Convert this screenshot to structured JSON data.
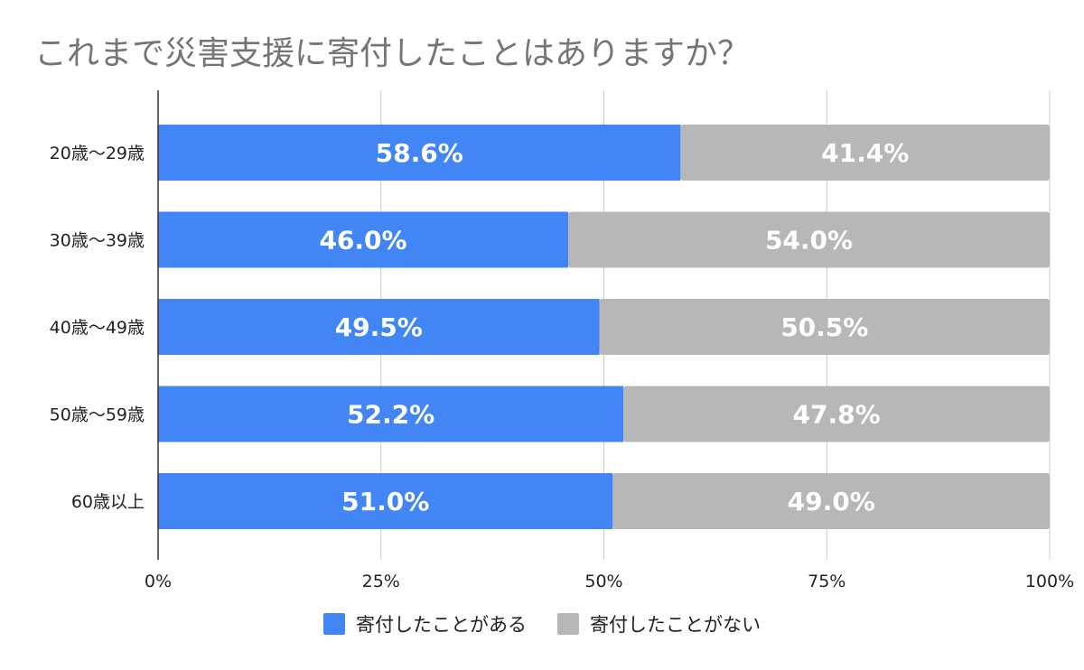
{
  "chart_data": {
    "type": "bar",
    "orientation": "horizontal",
    "stacked": true,
    "title": "これまで災害支援に寄付したことはありますか？",
    "categories": [
      "20歳～29歳",
      "30歳～39歳",
      "40歳～49歳",
      "50歳～59歳",
      "60歳以上"
    ],
    "series": [
      {
        "name": "寄付したことがある",
        "color": "#4285f4",
        "values": [
          58.6,
          46.0,
          49.5,
          52.2,
          51.0
        ],
        "labels": [
          "58.6%",
          "46.0%",
          "49.5%",
          "52.2%",
          "51.0%"
        ]
      },
      {
        "name": "寄付したことがない",
        "color": "#b7b7b7",
        "values": [
          41.4,
          54.0,
          50.5,
          47.8,
          49.0
        ],
        "labels": [
          "41.4%",
          "54.0%",
          "50.5%",
          "47.8%",
          "49.0%"
        ]
      }
    ],
    "xlim": [
      0,
      100
    ],
    "xticks": [
      0,
      25,
      50,
      75,
      100
    ],
    "xtick_labels": [
      "0%",
      "25%",
      "50%",
      "75%",
      "100%"
    ],
    "grid": true,
    "legend_position": "bottom"
  }
}
